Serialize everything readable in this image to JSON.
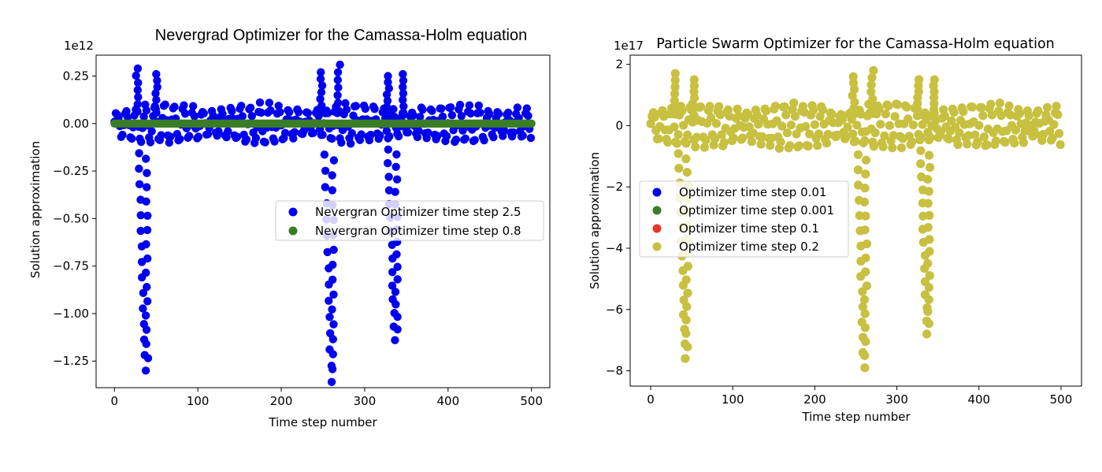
{
  "chart_data": [
    {
      "type": "scatter",
      "title": "Nevergrad Optimizer for the Camassa-Holm equation",
      "xlabel": "Time step number",
      "ylabel": "Solution approximation",
      "offset_text": "1e12",
      "xlim": [
        -22,
        522
      ],
      "ylim": [
        -1.39,
        0.36
      ],
      "xticks": [
        0,
        100,
        200,
        300,
        400,
        500
      ],
      "xtick_labels": [
        "0",
        "100",
        "200",
        "300",
        "400",
        "500"
      ],
      "yticks": [
        0.25,
        0.0,
        -0.25,
        -0.5,
        -0.75,
        -1.0,
        -1.25
      ],
      "ytick_labels": [
        "0.25",
        "0.00",
        "−0.25",
        "−0.50",
        "−0.75",
        "−1.00",
        "−1.25"
      ],
      "legend_position": "center-right",
      "series": [
        {
          "name": "Nevergran Optimizer time step 2.5",
          "color": "#0000ee",
          "pattern": "oscillation",
          "x_range": [
            0,
            500
          ],
          "typical_amplitude": 0.1,
          "dips": [
            {
              "x": 33,
              "y": -1.3
            },
            {
              "x": 256,
              "y": -1.36
            },
            {
              "x": 332,
              "y": -1.14
            }
          ],
          "peaks": [
            {
              "x": 27,
              "y": 0.29
            },
            {
              "x": 50,
              "y": 0.26
            },
            {
              "x": 248,
              "y": 0.27
            },
            {
              "x": 269,
              "y": 0.31
            },
            {
              "x": 328,
              "y": 0.25
            },
            {
              "x": 347,
              "y": 0.26
            }
          ]
        },
        {
          "name": "Nevergran Optimizer time step 0.8",
          "color": "#3a7d26",
          "pattern": "constant",
          "x_range": [
            0,
            500
          ],
          "y": 0.0
        }
      ]
    },
    {
      "type": "scatter",
      "title": "Particle Swarm Optimizer for the Camassa-Holm equation",
      "xlabel": "Time step number",
      "ylabel": "Solution approximation",
      "offset_text": "1e17",
      "xlim": [
        -25,
        525
      ],
      "ylim": [
        -8.5,
        2.3
      ],
      "xticks": [
        0,
        100,
        200,
        300,
        400,
        500
      ],
      "xtick_labels": [
        "0",
        "100",
        "200",
        "300",
        "400",
        "500"
      ],
      "yticks": [
        2,
        0,
        -2,
        -4,
        -6,
        -8
      ],
      "ytick_labels": [
        "2",
        "0",
        "−2",
        "−4",
        "−6",
        "−8"
      ],
      "legend_position": "center-left",
      "series": [
        {
          "name": "Optimizer time step 0.01",
          "color": "#0000ee",
          "pattern": "hidden"
        },
        {
          "name": "Optimizer time step 0.001",
          "color": "#3a7d26",
          "pattern": "hidden"
        },
        {
          "name": "Optimizer time step 0.1",
          "color": "#e8352b",
          "pattern": "hidden"
        },
        {
          "name": "Optimizer time step 0.2",
          "color": "#c8c040",
          "pattern": "oscillation",
          "x_range": [
            0,
            500
          ],
          "typical_amplitude": 0.7,
          "dips": [
            {
              "x": 38,
              "y": -7.6
            },
            {
              "x": 256,
              "y": -7.9
            },
            {
              "x": 333,
              "y": -6.8
            }
          ],
          "peaks": [
            {
              "x": 30,
              "y": 1.7
            },
            {
              "x": 52,
              "y": 1.5
            },
            {
              "x": 247,
              "y": 1.6
            },
            {
              "x": 270,
              "y": 1.8
            },
            {
              "x": 326,
              "y": 1.5
            },
            {
              "x": 345,
              "y": 1.5
            }
          ]
        }
      ]
    }
  ]
}
